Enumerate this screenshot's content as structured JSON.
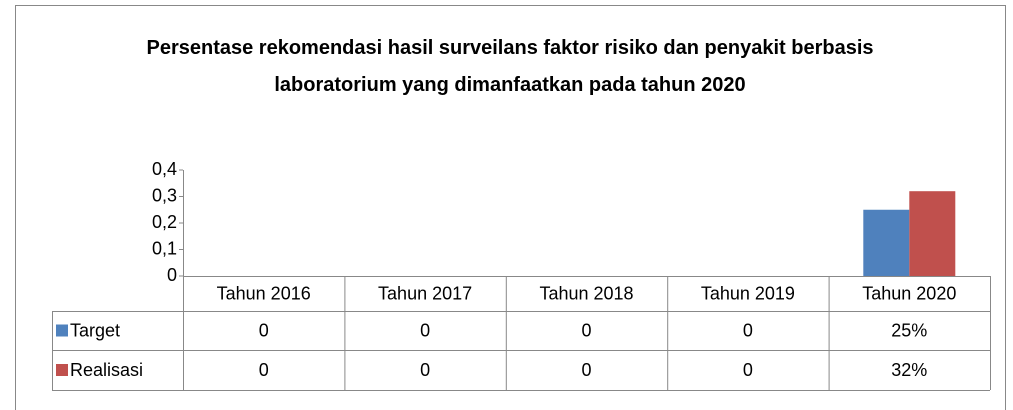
{
  "chart_data": {
    "type": "bar",
    "title": "Persentase rekomendasi hasil surveilans faktor risiko dan penyakit berbasis laboratorium yang dimanfaatkan pada tahun 2020",
    "categories": [
      "Tahun 2016",
      "Tahun 2017",
      "Tahun 2018",
      "Tahun 2019",
      "Tahun 2020"
    ],
    "series": [
      {
        "name": "Target",
        "color": "#4f81bd",
        "values": [
          0,
          0,
          0,
          0,
          0.25
        ],
        "value_labels": [
          "0",
          "0",
          "0",
          "0",
          "25%"
        ]
      },
      {
        "name": "Realisasi",
        "color": "#c0504d",
        "values": [
          0,
          0,
          0,
          0,
          0.32
        ],
        "value_labels": [
          "0",
          "0",
          "0",
          "0",
          "32%"
        ]
      }
    ],
    "ylim": [
      0,
      0.4
    ],
    "yticks": [
      0,
      {
        "value": 0.1,
        "label": "0,1"
      },
      {
        "value": 0.2,
        "label": "0,2"
      },
      {
        "value": 0.3,
        "label": "0,3"
      },
      {
        "value": 0.4,
        "label": "0,4"
      }
    ],
    "grid": false,
    "data_table": true
  }
}
